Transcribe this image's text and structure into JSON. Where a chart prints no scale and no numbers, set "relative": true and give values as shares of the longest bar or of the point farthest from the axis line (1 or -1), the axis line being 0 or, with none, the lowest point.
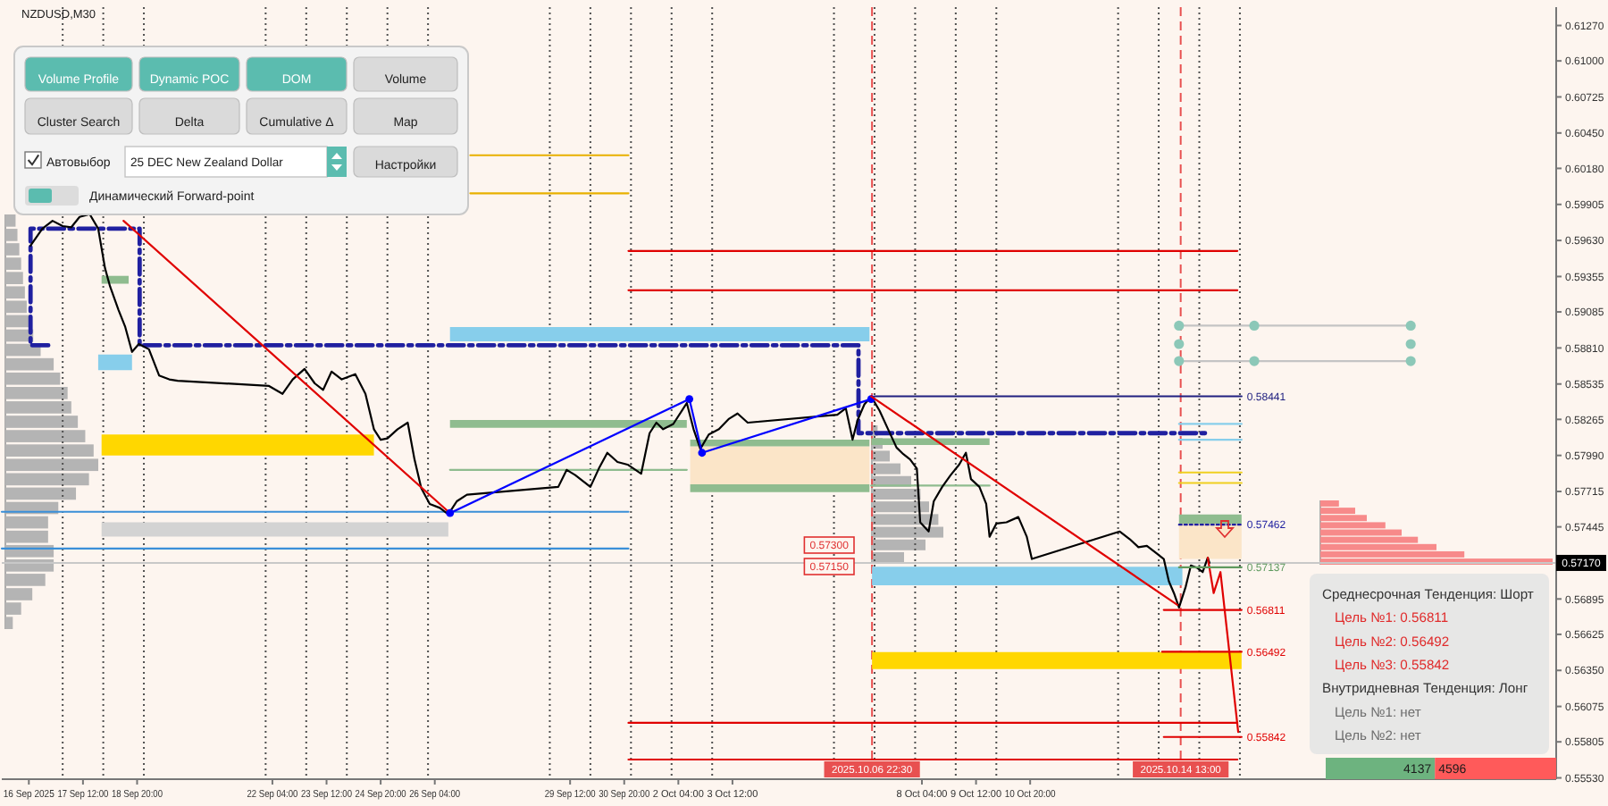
{
  "chart_data": [
    {
      "type": "line",
      "title": "NZDUSD,M30",
      "xlim": [
        "2025-09-15T12:00",
        "2025-10-23T19:00"
      ],
      "ylim": [
        0.5552,
        0.6141
      ],
      "xticks": [
        {
          "value": "2025-09-16T04:00",
          "label": "16 Sep 2025"
        },
        {
          "value": "2025-09-17T12:00",
          "label": "17 Sep 12:00"
        },
        {
          "value": "2025-09-18T20:00",
          "label": "18 Sep 20:00"
        },
        {
          "value": "2025-09-22T04:00",
          "label": "22 Sep 04:00"
        },
        {
          "value": "2025-09-23T12:00",
          "label": "23 Sep 12:00"
        },
        {
          "value": "2025-09-24T20:00",
          "label": "24 Sep 20:00"
        },
        {
          "value": "2025-09-26T04:00",
          "label": "26 Sep 04:00"
        },
        {
          "value": "2025-09-29T12:00",
          "label": "29 Sep 12:00"
        },
        {
          "value": "2025-09-30T20:00",
          "label": "30 Sep 20:00"
        },
        {
          "value": "2025-10-02T04:00",
          "label": "2 Oct 04:00"
        },
        {
          "value": "2025-10-03T12:00",
          "label": "3 Oct 12:00"
        },
        {
          "value": "2025-10-08T04:00",
          "label": "8 Oct 04:00"
        },
        {
          "value": "2025-10-09T12:00",
          "label": "9 Oct 12:00"
        },
        {
          "value": "2025-10-10T20:00",
          "label": "10 Oct 20:00"
        }
      ],
      "yticks": [
        {
          "value": 0.6127,
          "label": "0.61270"
        },
        {
          "value": 0.61,
          "label": "0.61000"
        },
        {
          "value": 0.60725,
          "label": "0.60725"
        },
        {
          "value": 0.6045,
          "label": "0.60450"
        },
        {
          "value": 0.6018,
          "label": "0.60180"
        },
        {
          "value": 0.59905,
          "label": "0.59905"
        },
        {
          "value": 0.5963,
          "label": "0.59630"
        },
        {
          "value": 0.59355,
          "label": "0.59355"
        },
        {
          "value": 0.59085,
          "label": "0.59085"
        },
        {
          "value": 0.5881,
          "label": "0.58810"
        },
        {
          "value": 0.58535,
          "label": "0.58535"
        },
        {
          "value": 0.58265,
          "label": "0.58265"
        },
        {
          "value": 0.5799,
          "label": "0.57990"
        },
        {
          "value": 0.57715,
          "label": "0.57715"
        },
        {
          "value": 0.57445,
          "label": "0.57445"
        },
        {
          "value": 0.56895,
          "label": "0.56895"
        },
        {
          "value": 0.56625,
          "label": "0.56625"
        },
        {
          "value": 0.5635,
          "label": "0.56350"
        },
        {
          "value": 0.56075,
          "label": "0.56075"
        },
        {
          "value": 0.55805,
          "label": "0.55805"
        },
        {
          "value": 0.5553,
          "label": "0.55530"
        }
      ],
      "ref_lines": [
        {
          "axis": "x",
          "value": "2025-09-17",
          "color": "#505050",
          "line_style": "dotted"
        },
        {
          "axis": "x",
          "value": "2025-09-18",
          "color": "#505050",
          "line_style": "dotted"
        },
        {
          "axis": "x",
          "value": "2025-09-19",
          "color": "#505050",
          "line_style": "dotted"
        },
        {
          "axis": "x",
          "value": "2025-09-22",
          "color": "#505050",
          "line_style": "dotted"
        },
        {
          "axis": "x",
          "value": "2025-09-23",
          "color": "#505050",
          "line_style": "dotted"
        },
        {
          "axis": "x",
          "value": "2025-09-24",
          "color": "#505050",
          "line_style": "dotted"
        },
        {
          "axis": "x",
          "value": "2025-09-25",
          "color": "#505050",
          "line_style": "dotted"
        },
        {
          "axis": "x",
          "value": "2025-09-26",
          "color": "#505050",
          "line_style": "dotted"
        },
        {
          "axis": "x",
          "value": "2025-09-29",
          "color": "#505050",
          "line_style": "dotted"
        },
        {
          "axis": "x",
          "value": "2025-09-30",
          "color": "#505050",
          "line_style": "dotted"
        },
        {
          "axis": "x",
          "value": "2025-10-01",
          "color": "#505050",
          "line_style": "dotted"
        },
        {
          "axis": "x",
          "value": "2025-10-02",
          "color": "#505050",
          "line_style": "dotted"
        },
        {
          "axis": "x",
          "value": "2025-10-03",
          "color": "#505050",
          "line_style": "dotted"
        },
        {
          "axis": "x",
          "value": "2025-10-06",
          "color": "#505050",
          "line_style": "dotted"
        },
        {
          "axis": "x",
          "value": "2025-10-07",
          "color": "#505050",
          "line_style": "dotted"
        },
        {
          "axis": "x",
          "value": "2025-10-08",
          "color": "#505050",
          "line_style": "dotted"
        },
        {
          "axis": "x",
          "value": "2025-10-09",
          "color": "#505050",
          "line_style": "dotted"
        },
        {
          "axis": "x",
          "value": "2025-10-10",
          "color": "#505050",
          "line_style": "dotted"
        },
        {
          "axis": "x",
          "value": "2025-10-13",
          "color": "#505050",
          "line_style": "dotted"
        },
        {
          "axis": "x",
          "value": "2025-10-14",
          "color": "#505050",
          "line_style": "dotted"
        },
        {
          "axis": "x",
          "value": "2025-10-15",
          "color": "#505050",
          "line_style": "dotted"
        },
        {
          "axis": "x",
          "value": "2025-10-16",
          "color": "#505050",
          "line_style": "dotted"
        },
        {
          "axis": "y",
          "value": 0.5717,
          "label": "0.57170",
          "color": "#c8c8c8"
        },
        {
          "axis": "x",
          "value": "2025-10-06T22:30",
          "label": "2025.10.06 22:30",
          "color": "#e85050",
          "line_style": "dashed"
        },
        {
          "axis": "x",
          "value": "2025-10-14T13:00",
          "label": "2025.10.14 13:00",
          "color": "#e85050",
          "line_style": "dashed"
        }
      ],
      "annotations": [
        "0.57300",
        "0.57150"
      ],
      "series": [
        {
          "type": "line",
          "color": "#87ceeb",
          "x": [
            "2025-09-26T13:00",
            "2025-10-06T21:00"
          ],
          "values": [
            null,
            null
          ],
          "lower": [
            0.5886,
            0.5886
          ],
          "upper": [
            0.5897,
            0.5897
          ]
        },
        {
          "type": "line",
          "color": "#ffd700",
          "x": [
            "2025-09-17T23:00",
            "2025-09-24T16:00"
          ],
          "values": [
            null,
            null
          ],
          "lower": [
            0.5799,
            0.5799
          ],
          "upper": [
            0.5815,
            0.5815
          ]
        },
        {
          "type": "line",
          "color": "#d3d3d3",
          "x": [
            "2025-09-17T23:00",
            "2025-09-26T12:00"
          ],
          "values": [
            null,
            null
          ],
          "lower": [
            0.5737,
            0.5737
          ],
          "upper": [
            0.5748,
            0.5748
          ]
        },
        {
          "type": "line",
          "color": "#ffd700",
          "x": [
            "2025-10-06T22:30",
            "2025-10-16T01:00"
          ],
          "values": [
            null,
            null
          ],
          "lower": [
            0.5636,
            0.5636
          ],
          "upper": [
            0.5649,
            0.5649
          ]
        },
        {
          "type": "line",
          "color": "#87ceeb",
          "x": [
            "2025-10-06T22:30",
            "2025-10-14T14:00"
          ],
          "values": [
            null,
            null
          ],
          "lower": [
            0.57,
            0.57
          ],
          "upper": [
            0.5714,
            0.5714
          ]
        },
        {
          "type": "line",
          "color": "#87ceeb",
          "x": [
            "2025-09-17T21:00",
            "2025-09-18T17:00"
          ],
          "values": [
            null,
            null
          ],
          "lower": [
            0.5864,
            0.5864
          ],
          "upper": [
            0.5876,
            0.5876
          ]
        },
        {
          "type": "line",
          "color": "#8fbc8f",
          "x": [
            "2025-09-26T13:00",
            "2025-10-02T09:00"
          ],
          "values": [
            null,
            null
          ],
          "lower": [
            0.582,
            0.582
          ],
          "upper": [
            0.5826,
            0.5826
          ]
        },
        {
          "type": "line",
          "color": "#8fbc8f",
          "x": [
            "2025-09-26T13:00",
            "2025-10-02T09:00"
          ],
          "values": [
            0.5788,
            0.5788
          ]
        },
        {
          "type": "line",
          "color": "#fbe5c8",
          "x": [
            "2025-10-02T11:00",
            "2025-10-06T21:00"
          ],
          "values": [
            null,
            null
          ],
          "lower": [
            0.5777,
            0.5777
          ],
          "upper": [
            0.5806,
            0.5806
          ]
        },
        {
          "type": "line",
          "color": "#8fbc8f",
          "x": [
            "2025-10-02T11:00",
            "2025-10-06T21:00"
          ],
          "values": [
            null,
            null
          ],
          "lower": [
            0.5771,
            0.5771
          ],
          "upper": [
            0.5777,
            0.5777
          ]
        },
        {
          "type": "line",
          "color": "#8fbc8f",
          "x": [
            "2025-10-02T11:00",
            "2025-10-06T21:00"
          ],
          "values": [
            null,
            null
          ],
          "lower": [
            0.5806,
            0.5806
          ],
          "upper": [
            0.5811,
            0.5811
          ]
        },
        {
          "type": "line",
          "color": "#8fbc8f",
          "x": [
            "2025-09-17T23:00",
            "2025-09-18T15:00"
          ],
          "values": [
            null,
            null
          ],
          "lower": [
            0.593,
            0.593
          ],
          "upper": [
            0.5936,
            0.5936
          ]
        },
        {
          "type": "line",
          "color": "#8fbc8f",
          "x": [
            "2025-10-06T22:00",
            "2025-10-09T20:00"
          ],
          "values": [
            null,
            null
          ],
          "lower": [
            0.5807,
            0.5807
          ],
          "upper": [
            0.5812,
            0.5812
          ]
        },
        {
          "type": "line",
          "color": "#8fbc8f",
          "x": [
            "2025-10-06T22:00",
            "2025-10-09T20:00"
          ],
          "values": [
            0.5776,
            0.5776
          ]
        },
        {
          "type": "line",
          "color": "#fbe5c8",
          "x": [
            "2025-10-14T12:00",
            "2025-10-16T01:00"
          ],
          "values": [
            null,
            null
          ],
          "lower": [
            0.572,
            0.572
          ],
          "upper": [
            0.5747,
            0.5747
          ]
        },
        {
          "type": "line",
          "color": "#8fbc8f",
          "x": [
            "2025-10-14T12:00",
            "2025-10-16T01:00"
          ],
          "values": [
            null,
            null
          ],
          "lower": [
            0.5747,
            0.5747
          ],
          "upper": [
            0.5754,
            0.5754
          ]
        },
        {
          "type": "line",
          "color": "#e00000",
          "x": [
            "2025-09-30T22:30",
            "2025-10-15T22:30"
          ],
          "values": [
            0.5955,
            0.5955
          ]
        },
        {
          "type": "line",
          "color": "#e00000",
          "x": [
            "2025-09-30T22:30",
            "2025-10-15T22:30"
          ],
          "values": [
            0.5925,
            0.5925
          ]
        },
        {
          "type": "line",
          "color": "#e00000",
          "x": [
            "2025-09-30T22:30",
            "2025-10-15T22:30"
          ],
          "values": [
            0.5595,
            0.5595
          ]
        },
        {
          "type": "line",
          "color": "#e00000",
          "x": [
            "2025-09-30T22:30",
            "2025-10-15T22:30"
          ],
          "values": [
            0.5567,
            0.5567
          ]
        },
        {
          "type": "line",
          "color": "#3a8fd8",
          "x": [
            "2025-09-15T12:00",
            "2025-09-30T22:30"
          ],
          "values": [
            0.5756,
            0.5756
          ]
        },
        {
          "type": "line",
          "color": "#3a8fd8",
          "x": [
            "2025-09-15T12:00",
            "2025-09-30T22:30"
          ],
          "values": [
            0.5728,
            0.5728
          ]
        },
        {
          "type": "line",
          "color": "#e8b000",
          "x": [
            "2025-09-27T01:00",
            "2025-09-30T22:30"
          ],
          "values": [
            0.6028,
            0.6028
          ]
        },
        {
          "type": "line",
          "color": "#e8b000",
          "x": [
            "2025-09-27T01:00",
            "2025-09-30T22:30"
          ],
          "values": [
            0.5999,
            0.5999
          ]
        },
        {
          "type": "line",
          "color": "#87ceeb",
          "x": [
            "2025-10-14T12:00",
            "2025-10-16T01:00"
          ],
          "values": [
            0.5823,
            0.5823
          ]
        },
        {
          "type": "line",
          "color": "#87ceeb",
          "x": [
            "2025-10-14T12:00",
            "2025-10-16T01:00"
          ],
          "values": [
            0.5811,
            0.5811
          ]
        },
        {
          "type": "line",
          "color": "#f0d020",
          "x": [
            "2025-10-14T12:00",
            "2025-10-16T01:00"
          ],
          "values": [
            0.5786,
            0.5786
          ]
        },
        {
          "type": "line",
          "color": "#f0d020",
          "x": [
            "2025-10-14T12:00",
            "2025-10-16T01:00"
          ],
          "values": [
            0.5778,
            0.5778
          ]
        },
        {
          "type": "line",
          "color": "#2020a0",
          "line_style": "dashed",
          "x": [
            "2025-09-16T15:30",
            "2025-09-16T05:00",
            "2025-09-16T05:00",
            "2025-09-18T21:30",
            "2025-09-18T21:30",
            "2025-10-06T14:30",
            "2025-10-06T14:30",
            "2025-10-15T04:00"
          ],
          "values": [
            0.5883,
            0.5883,
            0.5972,
            0.5972,
            0.5883,
            0.5883,
            0.5816,
            0.5816
          ]
        },
        {
          "type": "line",
          "color": "#000000",
          "x": [
            "2025-09-16T05:00",
            "2025-09-16T12:00",
            "2025-09-16T18:00",
            "2025-09-17T00:00",
            "2025-09-17T05:00",
            "2025-09-17T10:00",
            "2025-09-17T16:00",
            "2025-09-17T21:00",
            "2025-09-18T01:00",
            "2025-09-18T04:00",
            "2025-09-18T09:00",
            "2025-09-18T13:00",
            "2025-09-18T17:00",
            "2025-09-18T21:00",
            "2025-09-19T03:00",
            "2025-09-19T09:00",
            "2025-09-19T15:00",
            "2025-09-19T20:00",
            "2025-09-22T02:00",
            "2025-09-22T10:00",
            "2025-09-22T16:00",
            "2025-09-22T23:00",
            "2025-09-23T05:00",
            "2025-09-23T10:00",
            "2025-09-23T15:00",
            "2025-09-23T21:00",
            "2025-09-24T05:00",
            "2025-09-24T11:00",
            "2025-09-24T16:00",
            "2025-09-24T20:00",
            "2025-09-25T00:00",
            "2025-09-25T06:00",
            "2025-09-25T12:00",
            "2025-09-25T16:00",
            "2025-09-25T20:00",
            "2025-09-26T01:00",
            "2025-09-26T07:00",
            "2025-09-26T12:00",
            "2025-09-26T17:00",
            "2025-09-26T23:00",
            "2025-09-29T05:00",
            "2025-09-29T10:00",
            "2025-09-29T15:00",
            "2025-09-30T00:00",
            "2025-09-30T05:00",
            "2025-09-30T10:00",
            "2025-09-30T16:00",
            "2025-09-30T22:00",
            "2025-10-01T06:00",
            "2025-10-01T11:00",
            "2025-10-01T15:00",
            "2025-10-01T19:00",
            "2025-10-02T01:00",
            "2025-10-02T06:00",
            "2025-10-02T09:00",
            "2025-10-02T13:00",
            "2025-10-02T17:00",
            "2025-10-02T22:00",
            "2025-10-03T04:00",
            "2025-10-03T10:00",
            "2025-10-03T15:00",
            "2025-10-03T21:00",
            "2025-10-06T02:00",
            "2025-10-06T07:00",
            "2025-10-06T11:00",
            "2025-10-06T14:00",
            "2025-10-06T18:00",
            "2025-10-06T22:00",
            "2025-10-07T03:00",
            "2025-10-07T08:00",
            "2025-10-07T13:00",
            "2025-10-07T17:00",
            "2025-10-07T21:00",
            "2025-10-08T01:00",
            "2025-10-08T03:00",
            "2025-10-08T08:00",
            "2025-10-08T11:00",
            "2025-10-08T16:00",
            "2025-10-08T21:00",
            "2025-10-09T02:00",
            "2025-10-09T06:00",
            "2025-10-09T09:00",
            "2025-10-09T14:00",
            "2025-10-09T18:00",
            "2025-10-09T20:00",
            "2025-10-10T00:00",
            "2025-10-10T06:00",
            "2025-10-10T13:00",
            "2025-10-10T18:00",
            "2025-10-10T21:00",
            "2025-10-13T01:00",
            "2025-10-13T07:00",
            "2025-10-13T12:00",
            "2025-10-13T17:00",
            "2025-10-13T23:00",
            "2025-10-14T03:00",
            "2025-10-14T06:00",
            "2025-10-14T09:00",
            "2025-10-14T12:00",
            "2025-10-14T16:00",
            "2025-10-14T19:00",
            "2025-10-14T23:00",
            "2025-10-15T02:00",
            "2025-10-15T05:00",
            "2025-10-15T06:00"
          ],
          "values": [
            0.5959,
            0.5972,
            0.5978,
            0.5974,
            0.5973,
            0.5981,
            0.5983,
            0.5972,
            0.5942,
            0.5928,
            0.591,
            0.5897,
            0.5878,
            0.5884,
            0.588,
            0.586,
            0.5857,
            0.5856,
            0.5852,
            0.5846,
            0.5857,
            0.5865,
            0.5854,
            0.5849,
            0.5863,
            0.5857,
            0.5861,
            0.5846,
            0.5819,
            0.5811,
            0.5812,
            0.5819,
            0.5824,
            0.5796,
            0.5774,
            0.5762,
            0.5759,
            0.5754,
            0.5764,
            0.5769,
            0.5775,
            0.5788,
            0.5784,
            0.5775,
            0.5789,
            0.5801,
            0.5794,
            0.5792,
            0.5785,
            0.5816,
            0.5824,
            0.5819,
            0.5823,
            0.5833,
            0.5839,
            0.5819,
            0.5804,
            0.5815,
            0.5819,
            0.5827,
            0.5831,
            0.5824,
            0.583,
            0.5835,
            0.5811,
            0.5826,
            0.5838,
            0.5844,
            0.5833,
            0.5819,
            0.5805,
            0.58,
            0.5796,
            0.5789,
            0.5748,
            0.5741,
            0.5764,
            0.5775,
            0.5784,
            0.5792,
            0.5801,
            0.5781,
            0.5775,
            0.5762,
            0.5737,
            0.5747,
            0.5748,
            0.5752,
            0.5737,
            0.572,
            0.5741,
            0.5735,
            0.5729,
            0.573,
            0.5724,
            0.572,
            0.5703,
            0.5694,
            0.5683,
            0.5699,
            0.5715,
            0.5713,
            0.571,
            0.5721,
            0.5717
          ]
        },
        {
          "type": "line",
          "color": "#e00000",
          "x": [
            "2025-09-18T12:00",
            "2025-09-26T13:00"
          ],
          "values": [
            0.5978,
            0.5755
          ]
        },
        {
          "type": "line",
          "color": "#0000ff",
          "marker": "circle",
          "x": [
            "2025-09-26T13:00",
            "2025-10-02T10:30",
            "2025-10-02T18:00",
            "2025-10-06T22:00"
          ],
          "values": [
            0.5755,
            0.5842,
            0.5801,
            0.5842
          ]
        },
        {
          "type": "line",
          "color": "#e00000",
          "x": [
            "2025-10-06T22:00",
            "2025-10-14T11:00"
          ],
          "values": [
            0.5844,
            0.5685
          ]
        },
        {
          "type": "line",
          "color": "#e00000",
          "x": [
            "2025-10-15T05:00",
            "2025-10-15T08:30",
            "2025-10-15T12:30",
            "2025-10-15T23:00"
          ],
          "values": [
            0.5721,
            0.5694,
            0.571,
            0.5588
          ]
        },
        {
          "type": "line",
          "name": "0.58441",
          "color": "#202080",
          "x": [
            "2025-10-07T00:00",
            "2025-10-16T01:00"
          ],
          "values": [
            0.58441,
            0.58441
          ]
        },
        {
          "type": "line",
          "name": "0.57462",
          "color": "#2020a0",
          "line_style": "dotted",
          "x": [
            "2025-10-14T12:00",
            "2025-10-16T01:00"
          ],
          "values": [
            0.57462,
            0.57462
          ]
        },
        {
          "type": "line",
          "name": "0.57137",
          "color": "#5f9a5f",
          "x": [
            "2025-10-14T12:00",
            "2025-10-16T01:00"
          ],
          "values": [
            0.57137,
            0.57137
          ]
        },
        {
          "type": "line",
          "name": "0.56811",
          "color": "#e00000",
          "x": [
            "2025-10-14T03:00",
            "2025-10-16T01:00"
          ],
          "values": [
            0.56811,
            0.56811
          ]
        },
        {
          "type": "line",
          "name": "0.56492",
          "color": "#e00000",
          "x": [
            "2025-10-14T02:00",
            "2025-10-16T01:00"
          ],
          "values": [
            0.56492,
            0.56492
          ]
        },
        {
          "type": "line",
          "name": "0.55842",
          "color": "#e00000",
          "x": [
            "2025-10-14T03:00",
            "2025-10-16T01:00"
          ],
          "values": [
            0.55842,
            0.55842
          ]
        },
        {
          "type": "line",
          "color": "#c4c4c4",
          "x": [
            "2025-10-14T12:00",
            "2025-10-20T05:00"
          ],
          "values": [
            0.5898,
            0.5898
          ]
        },
        {
          "type": "line",
          "color": "#c4c4c4",
          "x": [
            "2025-10-14T12:00",
            "2025-10-20T05:00"
          ],
          "values": [
            0.5871,
            0.5871
          ]
        },
        {
          "type": "scatter",
          "marker": "circle",
          "color": "#8cc8b8",
          "x": [
            "2025-10-14T12:00",
            "2025-10-16T08:30",
            "2025-10-20T05:00",
            "2025-10-14T12:00",
            "2025-10-20T05:00",
            "2025-10-14T12:00",
            "2025-10-16T08:30",
            "2025-10-20T05:00"
          ],
          "values": [
            0.5898,
            0.5898,
            0.5898,
            0.5884,
            0.5884,
            0.5871,
            0.5871,
            0.5871
          ]
        }
      ]
    },
    {
      "type": "bar",
      "orientation": "horizontal",
      "relative": true,
      "color": "#b4b4b4",
      "categories": [
        null,
        null,
        null,
        null,
        null,
        null,
        null,
        null,
        null,
        null,
        null,
        null,
        null,
        null,
        null,
        null,
        null,
        null,
        null,
        null,
        null,
        null,
        null,
        null,
        null,
        null,
        null,
        null,
        null
      ],
      "values": [
        0.11,
        0.13,
        0.15,
        0.17,
        0.19,
        0.21,
        0.23,
        0.27,
        0.3,
        0.38,
        0.52,
        0.59,
        0.67,
        0.71,
        0.78,
        0.86,
        0.95,
        1,
        0.9,
        0.76,
        0.57,
        0.46,
        0.46,
        0.52,
        0.52,
        0.43,
        0.29,
        0.17,
        0.08
      ]
    },
    {
      "type": "bar",
      "orientation": "horizontal",
      "relative": true,
      "color": "#b4b4b4",
      "categories": [
        null,
        null,
        null,
        null,
        null,
        null,
        null,
        null,
        null,
        null,
        null
      ],
      "values": [
        0.08,
        0.15,
        0.25,
        0.4,
        0.55,
        0.68,
        0.8,
        0.93,
        1,
        0.75,
        0.45
      ]
    },
    {
      "type": "bar",
      "orientation": "horizontal",
      "relative": true,
      "color": "#f78a8a",
      "categories": [
        null,
        null,
        null,
        null,
        null,
        null,
        null,
        null,
        null
      ],
      "values": [
        0.08,
        0.15,
        0.2,
        0.28,
        0.35,
        0.42,
        0.5,
        0.62,
        1
      ]
    },
    {
      "type": "bar",
      "orientation": "horizontal",
      "stacked": true,
      "data_labels": true,
      "xlim": [
        0,
        8733
      ],
      "categories": [
        null
      ],
      "series": [
        {
          "color": "#6db37f",
          "values": [
            4137
          ]
        },
        {
          "color": "#ff5a5a",
          "values": [
            4596
          ]
        }
      ]
    },
    {
      "type": "other",
      "annotations": [
        "Среднесрочная Тенденция: Шорт",
        "Цель №1: 0.56811",
        "Цель №2: 0.56492",
        "Цель №3: 0.55842",
        "Внутридневная Тенденция: Лонг",
        "Цель №1: нет",
        "Цель №2: нет"
      ],
      "colors": [
        "#333333",
        "#e02b2b",
        "#e02b2b",
        "#e02b2b",
        "#333333",
        "#6e6e6e",
        "#6e6e6e"
      ]
    },
    {
      "type": "other",
      "annotations": [
        "Volume Profile",
        "Dynamic POC",
        "DOM",
        "Volume",
        "Cluster Search",
        "Delta",
        "Cumulative Δ",
        "Map",
        "Автовыбор",
        "25 DEC New Zealand Dollar",
        "Настройки",
        "Динамический Forward-point"
      ],
      "colors": [
        "#5bbcaf",
        "#5bbcaf",
        "#5bbcaf",
        "#dadada",
        "#dadada",
        "#dadada",
        "#dadada",
        "#dadada",
        "#ffffff",
        "#ffffff",
        "#dadada",
        "#5bbcaf"
      ]
    }
  ]
}
